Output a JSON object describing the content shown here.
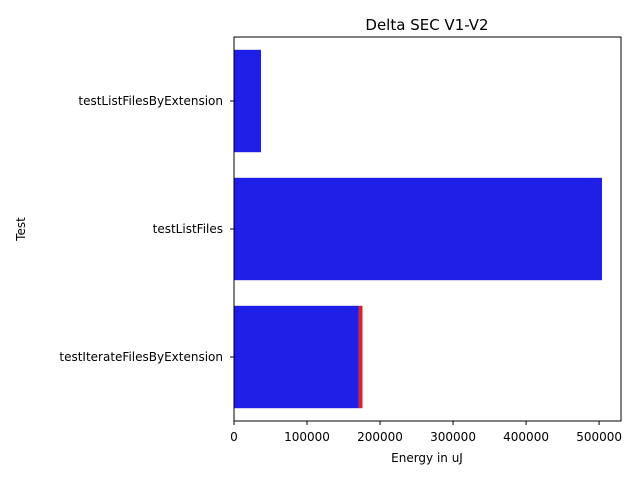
{
  "chart_data": {
    "type": "bar",
    "orientation": "horizontal",
    "title": "Delta SEC V1-V2",
    "xlabel": "Energy in uJ",
    "ylabel": "Test",
    "xlim": [
      0,
      530000
    ],
    "xticks": [
      0,
      100000,
      200000,
      300000,
      400000,
      500000
    ],
    "xtick_labels": [
      "0",
      "100000",
      "200000",
      "300000",
      "400000",
      "500000"
    ],
    "grid": false,
    "categories": [
      "testListFilesByExtension",
      "testListFiles",
      "testIterateFilesByExtension"
    ],
    "series": [
      {
        "values": [
          37000,
          504000,
          171000
        ],
        "color": "#1f1fe8"
      },
      {
        "values": [
          0,
          0,
          5000
        ],
        "color": "#e01f25",
        "stacked": true
      }
    ]
  }
}
